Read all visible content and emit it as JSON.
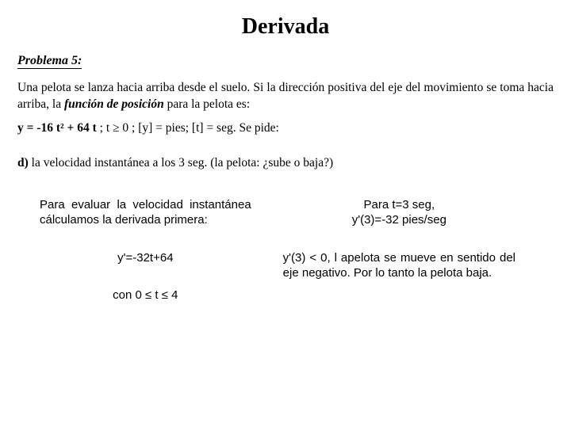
{
  "title": "Derivada",
  "problem": {
    "label": "Problema 5:",
    "statement_a": "Una pelota se lanza hacia arriba desde el suelo. Si la dirección positiva del eje del movimiento se toma hacia arriba, la ",
    "func_phrase": "función de posición",
    "statement_b": " para la pelota es:",
    "equation_bold": "y = -16 t² + 64 t",
    "equation_rest": " ;   t ≥ 0   ;   [y] = pies; [t] = seg.   Se pide:",
    "subquestion_label": "d)",
    "subquestion_text": " la velocidad instantánea a los 3 seg. (la pelota: ¿sube o baja?)"
  },
  "left": {
    "p1": "Para evaluar la velocidad instantánea cálculamos la derivada primera:",
    "eq": "y'=-32t+64",
    "cond": "con 0 ≤ t ≤ 4"
  },
  "right": {
    "l1": "Para t=3 seg,",
    "l2": "y'(3)=-32 pies/seg",
    "p2": "y'(3) < 0, l apelota se mueve en sentido del eje negativo. Por lo tanto la pelota baja."
  }
}
